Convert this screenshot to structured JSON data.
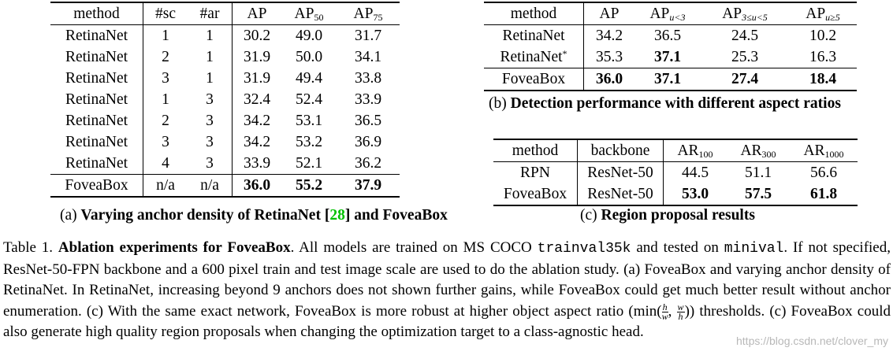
{
  "table_a": {
    "headers": [
      "method",
      "#sc",
      "#ar",
      "AP",
      "AP",
      "AP"
    ],
    "header_subs": [
      "",
      "",
      "",
      "",
      "50",
      "75"
    ],
    "rows": [
      [
        "RetinaNet",
        "1",
        "1",
        "30.2",
        "49.0",
        "31.7"
      ],
      [
        "RetinaNet",
        "2",
        "1",
        "31.9",
        "50.0",
        "34.1"
      ],
      [
        "RetinaNet",
        "3",
        "1",
        "31.9",
        "49.4",
        "33.8"
      ],
      [
        "RetinaNet",
        "1",
        "3",
        "32.4",
        "52.4",
        "33.9"
      ],
      [
        "RetinaNet",
        "2",
        "3",
        "34.2",
        "53.1",
        "36.5"
      ],
      [
        "RetinaNet",
        "3",
        "3",
        "34.2",
        "53.2",
        "36.9"
      ],
      [
        "RetinaNet",
        "4",
        "3",
        "33.9",
        "52.1",
        "36.2"
      ]
    ],
    "final_row": [
      "FoveaBox",
      "n/a",
      "n/a",
      "36.0",
      "55.2",
      "37.9"
    ],
    "caption_prefix": "(a) ",
    "caption_bold": "Varying anchor density of RetinaNet [",
    "caption_cite": "28",
    "caption_bold_end": "] and FoveaBox"
  },
  "table_b": {
    "headers": [
      "method",
      "AP",
      "AP",
      "AP",
      "AP"
    ],
    "header_subs": [
      "",
      "",
      "u<3",
      "3≤u<5",
      "u≥5"
    ],
    "rows": [
      [
        "RetinaNet",
        "34.2",
        "36.5",
        "24.5",
        "10.2"
      ],
      [
        "RetinaNet",
        "35.3",
        "37.1",
        "25.3",
        "16.3"
      ],
      [
        "FoveaBox",
        "36.0",
        "37.1",
        "27.4",
        "18.4"
      ]
    ],
    "row2_sup": "*",
    "caption_prefix": "(b) ",
    "caption_bold": "Detection performance with different aspect ratios"
  },
  "table_c": {
    "headers": [
      "method",
      "backbone",
      "AR",
      "AR",
      "AR"
    ],
    "header_subs": [
      "",
      "",
      "100",
      "300",
      "1000"
    ],
    "rows": [
      [
        "RPN",
        "ResNet-50",
        "44.5",
        "51.1",
        "56.6"
      ],
      [
        "FoveaBox",
        "ResNet-50",
        "53.0",
        "57.5",
        "61.8"
      ]
    ],
    "caption_prefix": "(c) ",
    "caption_bold": "Region proposal results"
  },
  "main_caption": {
    "label": "Table 1. ",
    "title": "Ablation experiments for FoveaBox",
    "t1": ". All models are trained on MS COCO ",
    "code1": "trainval35k",
    "t2": " and tested on ",
    "code2": "minival",
    "t3": ". If not specified, ResNet-50-FPN backbone and a 600 pixel train and test image scale are used to do the ablation study. (a) FoveaBox and varying anchor density of RetinaNet. In RetinaNet, increasing beyond 9 anchors does not shown further gains, while FoveaBox could get much better result without anchor enumeration. (c) With the same exact network, FoveaBox is more robust at higher object aspect ratio (",
    "min": "min(",
    "h1": "h",
    "w1": "w",
    "w2": "w",
    "h2": "h",
    "close": "))",
    "t4": " thresholds. (c) FoveaBox could also generate high quality region proposals when changing the optimization target to a class-agnostic head."
  },
  "watermark": "https://blog.csdn.net/clover_my"
}
